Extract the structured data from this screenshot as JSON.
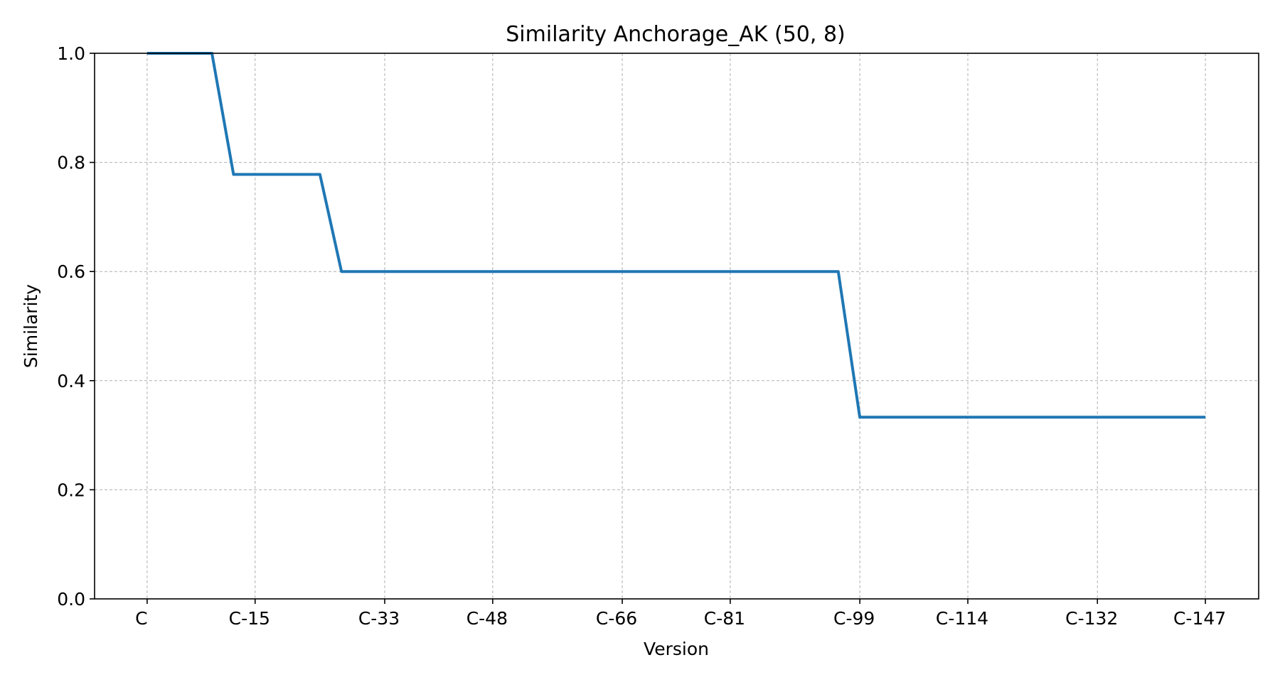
{
  "chart_data": {
    "type": "line",
    "title": "Similarity Anchorage_AK (50, 8)",
    "xlabel": "Version",
    "ylabel": "Similarity",
    "ylim": [
      0,
      1.0
    ],
    "yticks": [
      "0.0",
      "0.2",
      "0.4",
      "0.6",
      "0.8",
      "1.0"
    ],
    "grid": true,
    "line_color": "#1f77b4",
    "xticks": [
      {
        "label": "C",
        "x": 0
      },
      {
        "label": "C-15",
        "x": 15
      },
      {
        "label": "C-33",
        "x": 33
      },
      {
        "label": "C-48",
        "x": 48
      },
      {
        "label": "C-66",
        "x": 66
      },
      {
        "label": "C-81",
        "x": 81
      },
      {
        "label": "C-99",
        "x": 99
      },
      {
        "label": "C-114",
        "x": 114
      },
      {
        "label": "C-132",
        "x": 132
      },
      {
        "label": "C-147",
        "x": 147
      }
    ],
    "xlim": [
      -7.3,
      154.4
    ],
    "series": [
      {
        "points": [
          [
            0,
            1.0
          ],
          [
            9,
            1.0
          ],
          [
            12,
            0.778
          ],
          [
            24,
            0.778
          ],
          [
            27,
            0.6
          ],
          [
            96,
            0.6
          ],
          [
            99,
            0.333
          ],
          [
            147,
            0.333
          ]
        ]
      }
    ]
  }
}
